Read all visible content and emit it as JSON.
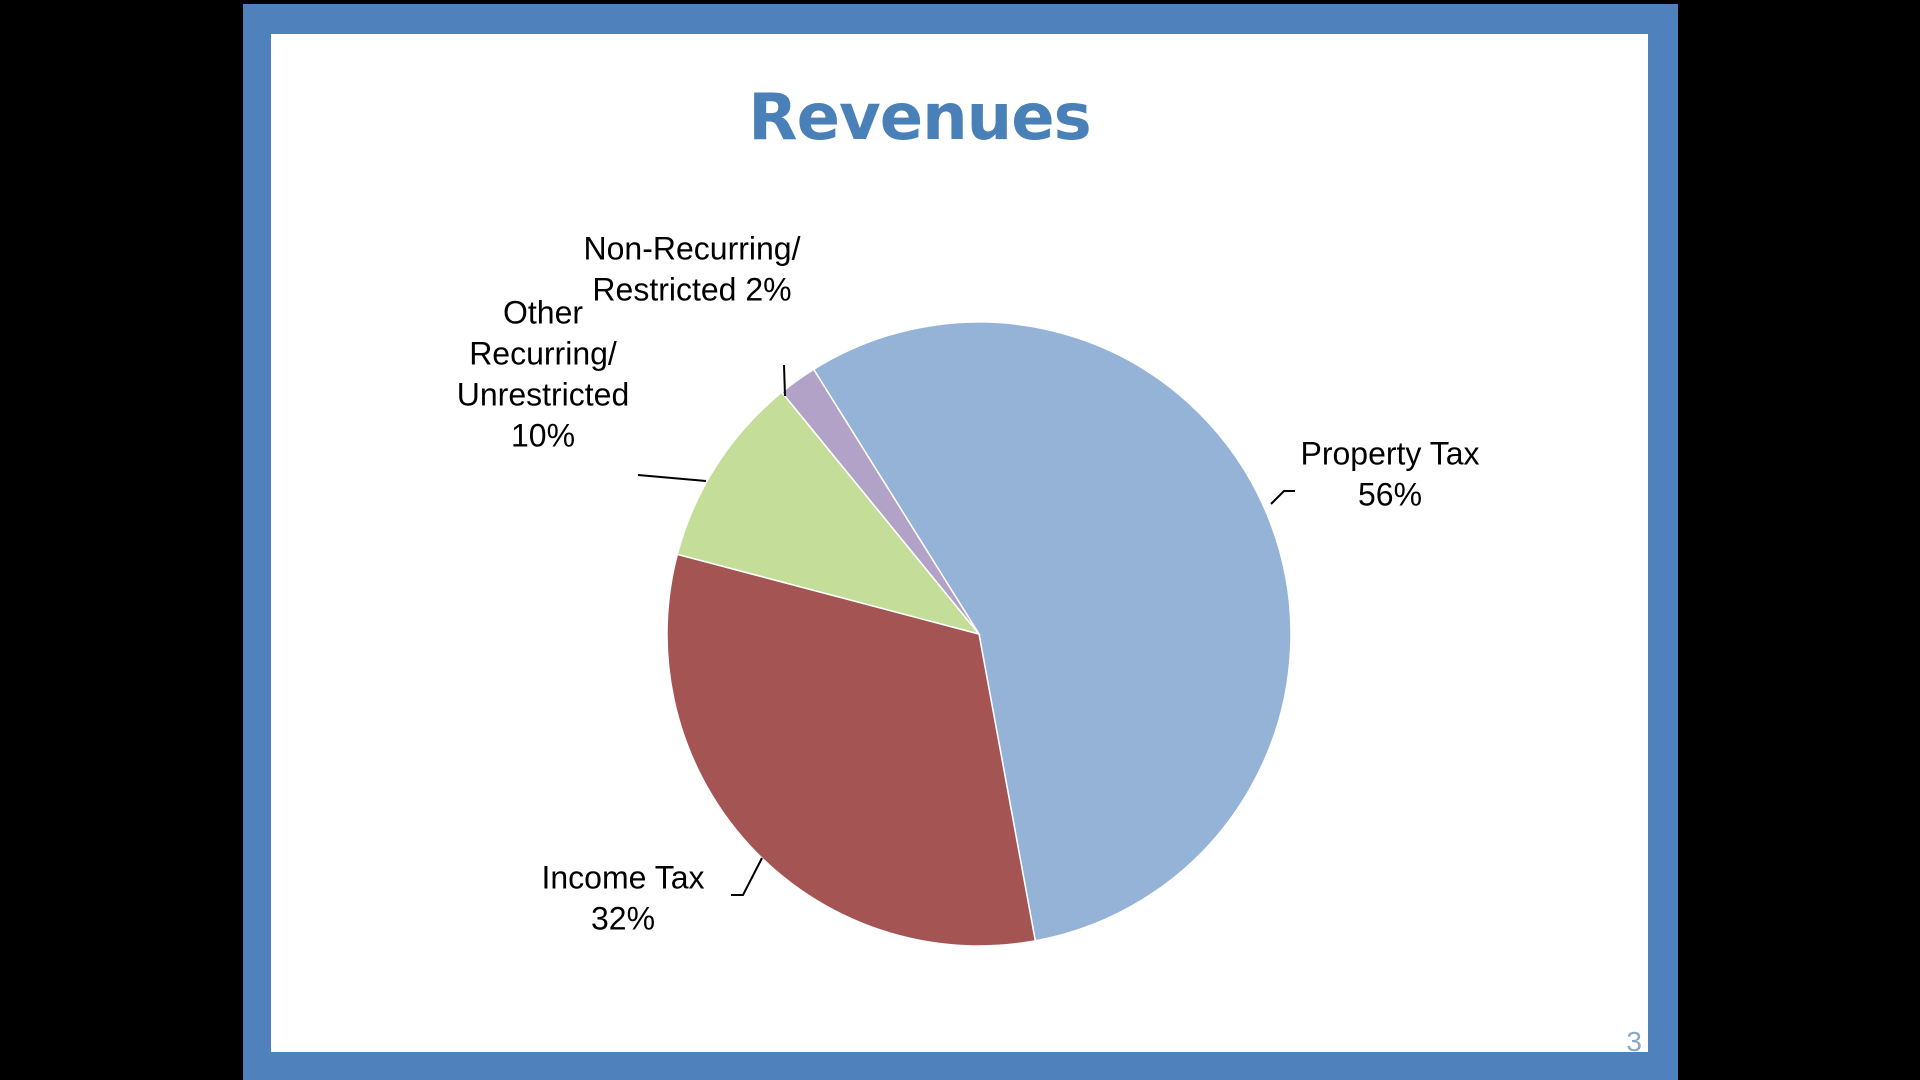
{
  "slide": {
    "title": "Revenues",
    "page_number": "3"
  },
  "colors": {
    "frame": "#4f81bd",
    "title": "#4a80b8",
    "property_tax": "#95b3d7",
    "income_tax": "#a45553",
    "other_recurring": "#c4dd99",
    "non_recurring": "#b3a2c7"
  },
  "chart_data": {
    "type": "pie",
    "title": "Revenues",
    "start_angle_deg": -32,
    "direction": "clockwise",
    "slices": [
      {
        "name": "Property Tax",
        "value": 56,
        "label_lines": [
          "Property Tax",
          "56%"
        ],
        "color": "#95b3d7"
      },
      {
        "name": "Income Tax",
        "value": 32,
        "label_lines": [
          "Income Tax",
          "32%"
        ],
        "color": "#a45553"
      },
      {
        "name": "Other Recurring/ Unrestricted",
        "value": 10,
        "label_lines": [
          "Other",
          "Recurring/",
          "Unrestricted",
          "10%"
        ],
        "color": "#c4dd99"
      },
      {
        "name": "Non-Recurring/ Restricted",
        "value": 2,
        "label_lines": [
          "Non-Recurring/",
          "Restricted 2%"
        ],
        "color": "#b3a2c7"
      }
    ],
    "legend": "none",
    "data_labels": "outside with leader lines"
  }
}
